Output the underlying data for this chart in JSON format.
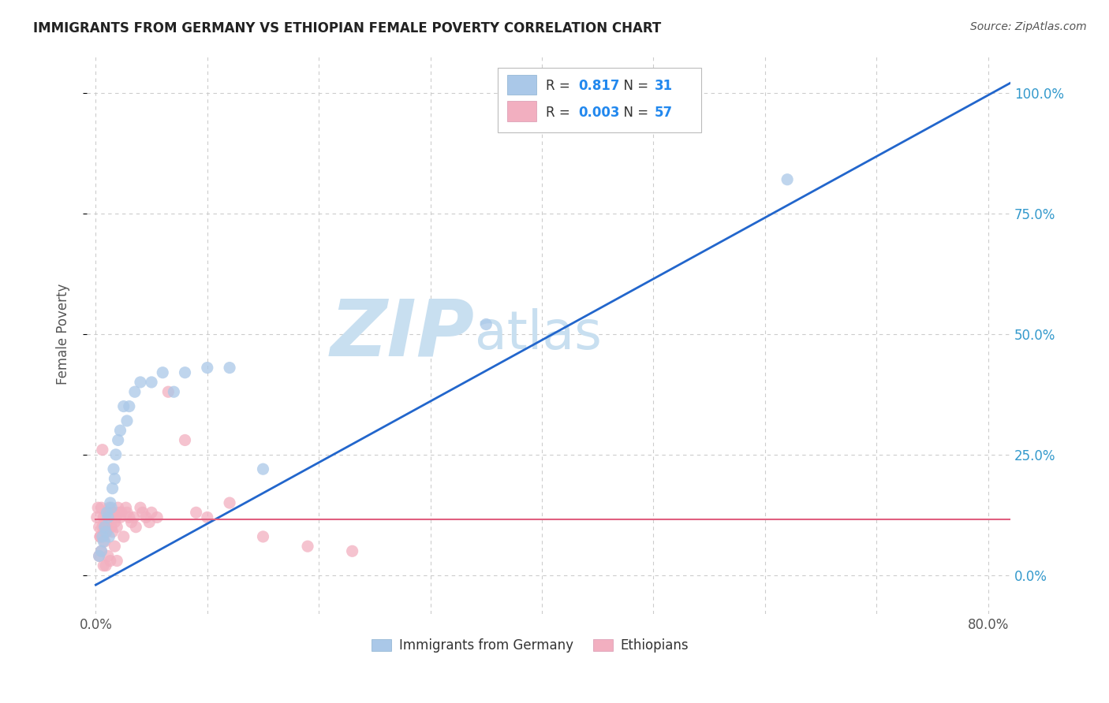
{
  "title": "IMMIGRANTS FROM GERMANY VS ETHIOPIAN FEMALE POVERTY CORRELATION CHART",
  "source_text": "Source: ZipAtlas.com",
  "ylabel": "Female Poverty",
  "xlim": [
    -0.008,
    0.82
  ],
  "ylim": [
    -0.08,
    1.08
  ],
  "yticks": [
    0.0,
    0.25,
    0.5,
    0.75,
    1.0
  ],
  "ytick_labels": [
    "0.0%",
    "25.0%",
    "50.0%",
    "75.0%",
    "100.0%"
  ],
  "xticks": [
    0.0,
    0.1,
    0.2,
    0.3,
    0.4,
    0.5,
    0.6,
    0.7,
    0.8
  ],
  "xtick_labels": [
    "0.0%",
    "",
    "",
    "",
    "",
    "",
    "",
    "",
    "80.0%"
  ],
  "blue_R": "0.817",
  "blue_N": "31",
  "pink_R": "0.003",
  "pink_N": "57",
  "blue_color": "#aac8e8",
  "pink_color": "#f2afc0",
  "blue_line_color": "#2266cc",
  "pink_line_color": "#e06080",
  "legend_label_blue": "Immigrants from Germany",
  "legend_label_pink": "Ethiopians",
  "watermark_zip": "ZIP",
  "watermark_atlas": "atlas",
  "watermark_color": "#c8dff0",
  "background_color": "#ffffff",
  "grid_color": "#cccccc",
  "title_color": "#222222",
  "axis_color": "#3399cc",
  "blue_scatter_x": [
    0.003,
    0.005,
    0.006,
    0.007,
    0.008,
    0.009,
    0.01,
    0.011,
    0.012,
    0.013,
    0.014,
    0.015,
    0.016,
    0.017,
    0.018,
    0.02,
    0.022,
    0.025,
    0.028,
    0.03,
    0.035,
    0.04,
    0.05,
    0.06,
    0.07,
    0.08,
    0.1,
    0.12,
    0.15,
    0.35,
    0.62
  ],
  "blue_scatter_y": [
    0.04,
    0.05,
    0.08,
    0.07,
    0.1,
    0.09,
    0.13,
    0.12,
    0.08,
    0.15,
    0.14,
    0.18,
    0.22,
    0.2,
    0.25,
    0.28,
    0.3,
    0.35,
    0.32,
    0.35,
    0.38,
    0.4,
    0.4,
    0.42,
    0.38,
    0.42,
    0.43,
    0.43,
    0.22,
    0.52,
    0.82
  ],
  "pink_scatter_x": [
    0.001,
    0.002,
    0.003,
    0.004,
    0.005,
    0.006,
    0.007,
    0.008,
    0.009,
    0.01,
    0.011,
    0.012,
    0.013,
    0.014,
    0.015,
    0.016,
    0.017,
    0.018,
    0.019,
    0.02,
    0.021,
    0.022,
    0.023,
    0.025,
    0.027,
    0.028,
    0.03,
    0.032,
    0.034,
    0.036,
    0.04,
    0.042,
    0.045,
    0.048,
    0.05,
    0.055,
    0.065,
    0.08,
    0.09,
    0.1,
    0.12,
    0.15,
    0.19,
    0.23,
    0.003,
    0.005,
    0.007,
    0.009,
    0.011,
    0.013,
    0.015,
    0.017,
    0.019,
    0.004,
    0.006,
    0.008,
    0.01
  ],
  "pink_scatter_y": [
    0.12,
    0.14,
    0.1,
    0.08,
    0.14,
    0.26,
    0.12,
    0.1,
    0.09,
    0.11,
    0.13,
    0.14,
    0.12,
    0.1,
    0.09,
    0.13,
    0.11,
    0.12,
    0.1,
    0.14,
    0.13,
    0.12,
    0.13,
    0.08,
    0.14,
    0.13,
    0.12,
    0.11,
    0.12,
    0.1,
    0.14,
    0.13,
    0.12,
    0.11,
    0.13,
    0.12,
    0.38,
    0.28,
    0.13,
    0.12,
    0.15,
    0.08,
    0.06,
    0.05,
    0.04,
    0.05,
    0.02,
    0.02,
    0.04,
    0.03,
    0.13,
    0.06,
    0.03,
    0.08,
    0.1,
    0.07,
    0.09
  ],
  "blue_line_x0": 0.0,
  "blue_line_x1": 0.82,
  "blue_line_y0": -0.02,
  "blue_line_y1": 1.02,
  "pink_line_x0": 0.0,
  "pink_line_x1": 0.82,
  "pink_line_y0": 0.115,
  "pink_line_y1": 0.115
}
